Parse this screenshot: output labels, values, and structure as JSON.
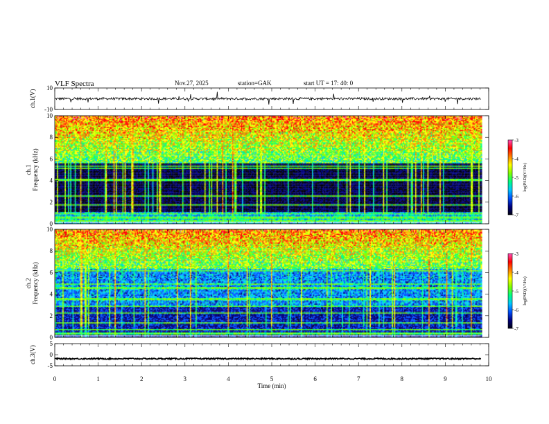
{
  "header": {
    "title": "VLF  Spectra",
    "date": "Nov.27, 2025",
    "station": "station=GAK",
    "start": "start  UT  =   17: 40: 0"
  },
  "chart_data": [
    {
      "name": "ch1-waveform",
      "type": "line",
      "ylabel": "ch.1(V)",
      "ylim": [
        -10,
        10
      ],
      "y_ticks": [
        "10",
        "-10"
      ],
      "xlim": [
        0,
        10
      ],
      "trace_level": 0,
      "color": "#000000"
    },
    {
      "name": "ch1-spectrogram",
      "type": "heatmap",
      "ylabel_line1": "ch.1",
      "ylabel_line2": "Frequency  (kHz)",
      "ylim": [
        0,
        10
      ],
      "y_ticks": [
        "10",
        "8",
        "6",
        "4",
        "2",
        "0"
      ],
      "xlim": [
        0,
        10
      ],
      "data_end_min": 9.82,
      "colorbar": {
        "label": "log(PSD)(V²/Hz)",
        "range": [
          -7,
          -3
        ],
        "ticks": [
          "-3",
          "-4",
          "-5",
          "-6",
          "-7"
        ]
      }
    },
    {
      "name": "ch2-spectrogram",
      "type": "heatmap",
      "ylabel_line1": "ch.2",
      "ylabel_line2": "Frequency  (kHz)",
      "ylim": [
        0,
        10
      ],
      "y_ticks": [
        "10",
        "8",
        "6",
        "4",
        "2",
        "0"
      ],
      "xlim": [
        0,
        10
      ],
      "data_end_min": 9.82,
      "colorbar": {
        "label": "log(PSD)(V²/Hz)",
        "range": [
          -7,
          -3
        ],
        "ticks": [
          "-3",
          "-4",
          "-5",
          "-6",
          "-7"
        ]
      }
    },
    {
      "name": "ch3-waveform",
      "type": "line",
      "ylabel": "ch.3(V)",
      "ylim": [
        -5,
        5
      ],
      "y_ticks": [
        "5",
        "0",
        "-5"
      ],
      "xlim": [
        0,
        10
      ],
      "xlabel": "Time  (min)",
      "x_ticks": [
        "0",
        "1",
        "2",
        "3",
        "4",
        "5",
        "6",
        "7",
        "8",
        "9",
        "10"
      ],
      "trace_level": -1.8,
      "color": "#000000"
    }
  ],
  "colors": {
    "colormap": [
      "#000010",
      "#000080",
      "#0050ff",
      "#00c8ff",
      "#00ff80",
      "#80ff00",
      "#ffff00",
      "#ff8000",
      "#ff0000",
      "#ff50c0"
    ]
  }
}
